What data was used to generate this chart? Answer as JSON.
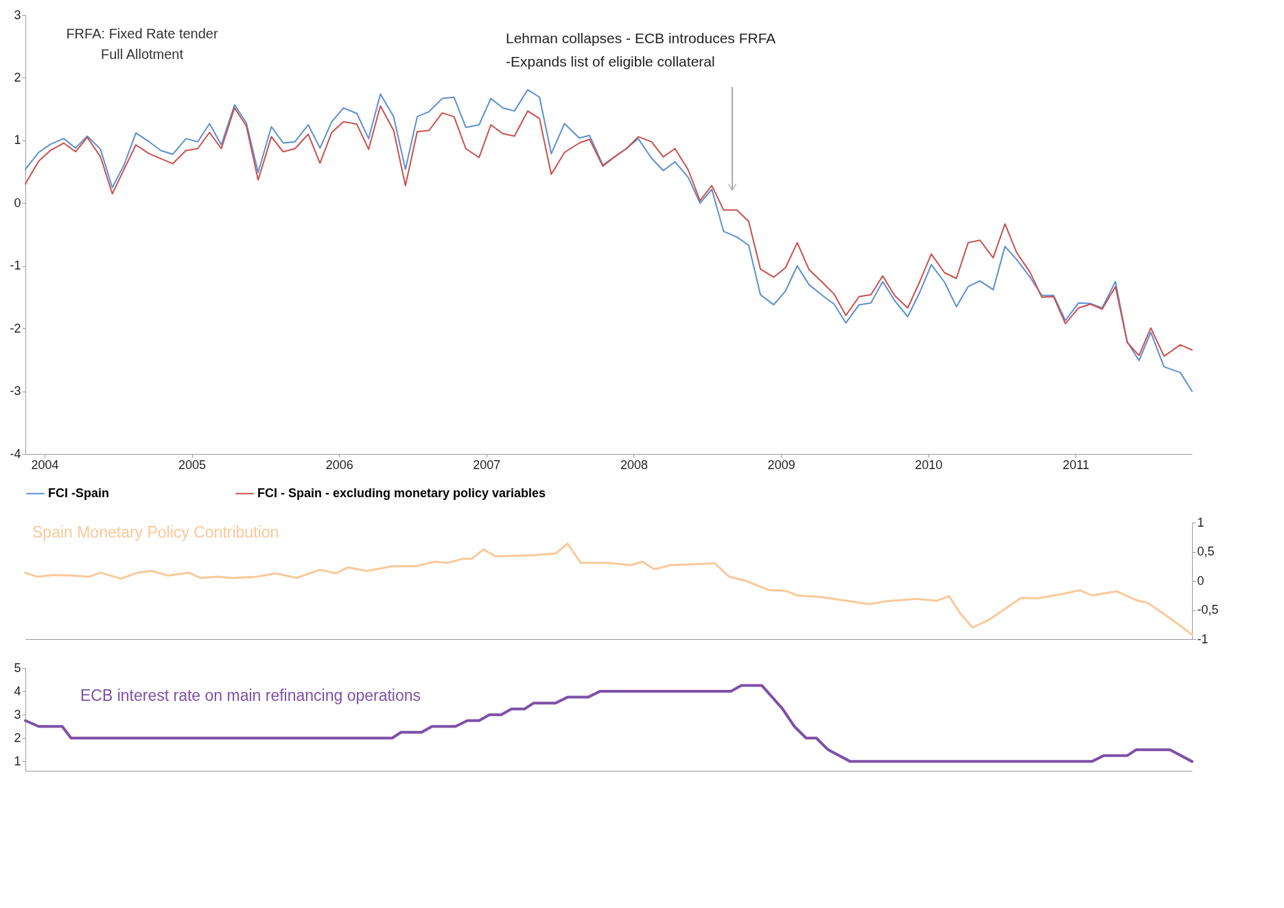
{
  "chart_data": [
    {
      "type": "line",
      "xlim": [
        2003.87,
        2011.79
      ],
      "xticks": [
        2004,
        2005,
        2006,
        2007,
        2008,
        2009,
        2010,
        2011
      ],
      "ylim": [
        -4,
        3
      ],
      "yticks": [
        -4,
        -3,
        -2,
        -1,
        0,
        1,
        2,
        3
      ],
      "legend": "bottom",
      "annotations": [
        "FRFA: Fixed Rate tender\nFull Allotment",
        "Lehman collapses - ECB introduces FRFA\n-Expands list of eligible collateral"
      ],
      "x": [
        2003.87,
        2003.96,
        2004.04,
        2004.13,
        2004.21,
        2004.29,
        2004.38,
        2004.46,
        2004.54,
        2004.62,
        2004.71,
        2004.79,
        2004.87,
        2004.96,
        2005.04,
        2005.12,
        2005.2,
        2005.29,
        2005.37,
        2005.45,
        2005.54,
        2005.62,
        2005.7,
        2005.79,
        2005.87,
        2005.95,
        2006.03,
        2006.12,
        2006.2,
        2006.28,
        2006.37,
        2006.45,
        2006.53,
        2006.61,
        2006.7,
        2006.78,
        2006.86,
        2006.95,
        2007.03,
        2007.11,
        2007.19,
        2007.28,
        2007.36,
        2007.44,
        2007.53,
        2007.63,
        2007.7,
        2007.79,
        2007.87,
        2007.95,
        2008.03,
        2008.12,
        2008.2,
        2008.28,
        2008.37,
        2008.45,
        2008.53,
        2008.61,
        2008.7,
        2008.78,
        2008.86,
        2008.95,
        2009.03,
        2009.11,
        2009.19,
        2009.28,
        2009.36,
        2009.44,
        2009.53,
        2009.61,
        2009.69,
        2009.77,
        2009.86,
        2009.94,
        2010.02,
        2010.11,
        2010.19,
        2010.27,
        2010.35,
        2010.44,
        2010.52,
        2010.6,
        2010.69,
        2010.77,
        2010.85,
        2010.93,
        2011.02,
        2011.1,
        2011.18,
        2011.27,
        2011.35,
        2011.43,
        2011.51,
        2011.6,
        2011.71,
        2011.79
      ],
      "series": [
        {
          "name": "FCI -Spain",
          "color": "#5b8fd0",
          "values": [
            0.54,
            0.81,
            0.94,
            1.03,
            0.88,
            1.07,
            0.86,
            0.25,
            0.61,
            1.12,
            0.98,
            0.84,
            0.78,
            1.03,
            0.98,
            1.27,
            0.93,
            1.57,
            1.28,
            0.49,
            1.22,
            0.96,
            0.98,
            1.25,
            0.88,
            1.3,
            1.52,
            1.43,
            1.03,
            1.74,
            1.38,
            0.54,
            1.38,
            1.46,
            1.67,
            1.69,
            1.21,
            1.25,
            1.67,
            1.52,
            1.47,
            1.81,
            1.69,
            0.79,
            1.27,
            1.04,
            1.08,
            0.61,
            0.74,
            0.87,
            1.03,
            0.72,
            0.52,
            0.66,
            0.41,
            0.0,
            0.22,
            -0.45,
            -0.54,
            -0.67,
            -1.46,
            -1.62,
            -1.4,
            -1.0,
            -1.3,
            -1.47,
            -1.61,
            -1.91,
            -1.62,
            -1.59,
            -1.25,
            -1.55,
            -1.81,
            -1.43,
            -0.98,
            -1.26,
            -1.65,
            -1.33,
            -1.24,
            -1.38,
            -0.69,
            -0.9,
            -1.18,
            -1.47,
            -1.47,
            -1.87,
            -1.59,
            -1.6,
            -1.67,
            -1.25,
            -2.21,
            -2.51,
            -2.06,
            -2.61,
            -2.7,
            -3.0
          ]
        },
        {
          "name": "FCI - Spain - excluding monetary policy variables",
          "color": "#c9504c",
          "values": [
            0.31,
            0.67,
            0.84,
            0.96,
            0.82,
            1.05,
            0.74,
            0.15,
            0.54,
            0.93,
            0.79,
            0.71,
            0.63,
            0.84,
            0.87,
            1.13,
            0.87,
            1.52,
            1.23,
            0.37,
            1.06,
            0.82,
            0.87,
            1.1,
            0.64,
            1.13,
            1.3,
            1.26,
            0.86,
            1.55,
            1.16,
            0.28,
            1.14,
            1.16,
            1.44,
            1.38,
            0.87,
            0.73,
            1.25,
            1.11,
            1.07,
            1.47,
            1.35,
            0.46,
            0.81,
            0.96,
            1.02,
            0.59,
            0.74,
            0.87,
            1.06,
            0.98,
            0.74,
            0.87,
            0.53,
            0.04,
            0.28,
            -0.11,
            -0.11,
            -0.29,
            -1.05,
            -1.18,
            -1.03,
            -0.63,
            -1.06,
            -1.26,
            -1.45,
            -1.79,
            -1.49,
            -1.46,
            -1.16,
            -1.47,
            -1.67,
            -1.26,
            -0.81,
            -1.11,
            -1.2,
            -0.63,
            -0.59,
            -0.87,
            -0.33,
            -0.79,
            -1.1,
            -1.5,
            -1.49,
            -1.92,
            -1.67,
            -1.61,
            -1.69,
            -1.33,
            -2.22,
            -2.43,
            -1.99,
            -2.44,
            -2.26,
            -2.34
          ]
        }
      ]
    },
    {
      "type": "line",
      "xlim": [
        2003.87,
        2011.79
      ],
      "y2lim": [
        -1,
        1
      ],
      "y2ticks": [
        1,
        {
          "value": 0.5,
          "label": "0,5"
        },
        0,
        {
          "value": -0.5,
          "label": "-0,5"
        },
        -1
      ],
      "x": [
        2003.87,
        2003.95,
        2004.06,
        2004.19,
        2004.3,
        2004.38,
        2004.52,
        2004.63,
        2004.73,
        2004.84,
        2004.98,
        2005.06,
        2005.17,
        2005.28,
        2005.44,
        2005.57,
        2005.71,
        2005.87,
        2005.98,
        2006.06,
        2006.19,
        2006.36,
        2006.52,
        2006.65,
        2006.74,
        2006.84,
        2006.9,
        2006.98,
        2007.06,
        2007.33,
        2007.47,
        2007.55,
        2007.64,
        2007.82,
        2007.98,
        2008.06,
        2008.14,
        2008.25,
        2008.55,
        2008.65,
        2008.76,
        2008.92,
        2009.03,
        2009.11,
        2009.28,
        2009.6,
        2009.71,
        2009.92,
        2010.06,
        2010.14,
        2010.22,
        2010.3,
        2010.41,
        2010.55,
        2010.63,
        2010.74,
        2010.9,
        2011.03,
        2011.11,
        2011.28,
        2011.41,
        2011.49,
        2011.63,
        2011.79
      ],
      "series": [
        {
          "name": "Spain Monetary Policy Contribution",
          "color": "#f9c99a",
          "axis": "y2",
          "values": [
            0.14,
            0.07,
            0.1,
            0.09,
            0.07,
            0.14,
            0.04,
            0.14,
            0.17,
            0.09,
            0.14,
            0.05,
            0.07,
            0.05,
            0.07,
            0.13,
            0.05,
            0.19,
            0.13,
            0.23,
            0.17,
            0.25,
            0.25,
            0.33,
            0.31,
            0.38,
            0.38,
            0.54,
            0.42,
            0.44,
            0.47,
            0.64,
            0.31,
            0.31,
            0.27,
            0.33,
            0.2,
            0.27,
            0.3,
            0.07,
            0.0,
            -0.16,
            -0.17,
            -0.25,
            -0.28,
            -0.4,
            -0.35,
            -0.31,
            -0.34,
            -0.26,
            -0.57,
            -0.8,
            -0.67,
            -0.43,
            -0.29,
            -0.3,
            -0.23,
            -0.16,
            -0.25,
            -0.18,
            -0.33,
            -0.38,
            -0.62,
            -0.92
          ]
        }
      ]
    },
    {
      "type": "line",
      "xlim": [
        2003.87,
        2011.79
      ],
      "ylim": [
        0.6,
        5
      ],
      "yticks": [
        1,
        2,
        3,
        4,
        5
      ],
      "x": [
        2003.87,
        2003.96,
        2004.12,
        2004.18,
        2006.36,
        2006.42,
        2006.56,
        2006.63,
        2006.79,
        2006.87,
        2006.95,
        2007.02,
        2007.1,
        2007.17,
        2007.26,
        2007.32,
        2007.47,
        2007.55,
        2007.69,
        2007.77,
        2008.66,
        2008.73,
        2008.87,
        2009.01,
        2009.09,
        2009.17,
        2009.24,
        2009.32,
        2009.47,
        2011.11,
        2011.19,
        2011.35,
        2011.41,
        2011.64,
        2011.79
      ],
      "series": [
        {
          "name": "ECB interest rate on main refinancing operations",
          "color": "#7f4fa8",
          "values": [
            2.75,
            2.5,
            2.5,
            2.0,
            2.0,
            2.25,
            2.25,
            2.5,
            2.5,
            2.75,
            2.75,
            3.0,
            3.0,
            3.25,
            3.25,
            3.5,
            3.5,
            3.75,
            3.75,
            4.0,
            4.0,
            4.25,
            4.25,
            3.25,
            2.5,
            2.0,
            2.0,
            1.5,
            1.0,
            1.0,
            1.25,
            1.25,
            1.5,
            1.5,
            1.0
          ]
        }
      ]
    }
  ]
}
